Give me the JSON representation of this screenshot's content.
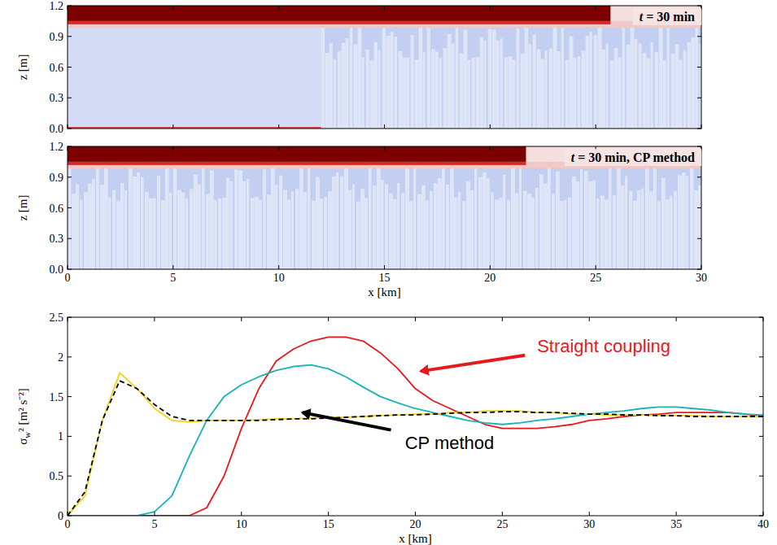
{
  "chart_data": [
    {
      "type": "field",
      "annotation": "t = 30 min",
      "xlim": [
        0,
        30
      ],
      "xticks": [
        0,
        5,
        10,
        15,
        20,
        25,
        30
      ],
      "ylim": [
        0,
        1.2
      ],
      "yticks": [
        {
          "value": 0,
          "label": "0.0"
        },
        0.3,
        0.6,
        0.9,
        1.2
      ],
      "ylabel": "z [m]",
      "tick_labels": "y",
      "inversion_end": 25.7,
      "turbulence_start": 12
    },
    {
      "type": "field",
      "annotation": "t = 30 min, CP method",
      "xlim": [
        0,
        30
      ],
      "xticks": [
        0,
        5,
        10,
        15,
        20,
        25,
        30
      ],
      "ylim": [
        0,
        1.2
      ],
      "yticks": [
        {
          "value": 0,
          "label": "0.0"
        },
        0.3,
        0.6,
        0.9,
        1.2
      ],
      "ylabel": "z [m]",
      "xlabel": "x [km]",
      "inversion_end": 21.7,
      "turbulence_start": 0
    },
    {
      "type": "line",
      "xlabel": "x [km]",
      "ylabel": "σw² [m² s⁻²]",
      "xlim": [
        0,
        40
      ],
      "xticks": [
        0,
        5,
        10,
        15,
        20,
        25,
        30,
        35,
        40
      ],
      "ylim": [
        0,
        2.5
      ],
      "yticks": [
        0,
        0.5,
        1,
        1.5,
        2,
        2.5
      ],
      "x": [
        0,
        1,
        2,
        3,
        4,
        5,
        6,
        7,
        8,
        9,
        10,
        11,
        12,
        13,
        14,
        15,
        16,
        17,
        18,
        19,
        20,
        21,
        22,
        23,
        24,
        25,
        26,
        27,
        28,
        29,
        30,
        31,
        32,
        33,
        34,
        35,
        36,
        37,
        38,
        39,
        40
      ],
      "series": [
        {
          "color": "#e8191c",
          "line_style": "solid",
          "values": [
            0,
            0,
            0,
            0,
            0,
            0,
            0,
            0,
            0.1,
            0.5,
            1.1,
            1.6,
            1.95,
            2.1,
            2.2,
            2.25,
            2.25,
            2.2,
            2.05,
            1.85,
            1.6,
            1.45,
            1.35,
            1.25,
            1.15,
            1.1,
            1.1,
            1.1,
            1.12,
            1.15,
            1.2,
            1.22,
            1.25,
            1.27,
            1.28,
            1.3,
            1.3,
            1.3,
            1.3,
            1.28,
            1.25
          ]
        },
        {
          "color": "#17b3b8",
          "line_style": "solid",
          "values": [
            0,
            0,
            0,
            0,
            0,
            0.05,
            0.25,
            0.75,
            1.2,
            1.5,
            1.65,
            1.75,
            1.83,
            1.88,
            1.9,
            1.85,
            1.75,
            1.62,
            1.5,
            1.42,
            1.35,
            1.3,
            1.25,
            1.2,
            1.17,
            1.15,
            1.17,
            1.2,
            1.22,
            1.25,
            1.28,
            1.3,
            1.32,
            1.35,
            1.37,
            1.37,
            1.35,
            1.33,
            1.3,
            1.28,
            1.27
          ]
        },
        {
          "color": "#f2d317",
          "line_style": "solid",
          "values": [
            0,
            0.25,
            1.2,
            1.8,
            1.6,
            1.35,
            1.2,
            1.18,
            1.2,
            1.2,
            1.2,
            1.21,
            1.22,
            1.22,
            1.23,
            1.24,
            1.24,
            1.25,
            1.26,
            1.27,
            1.28,
            1.28,
            1.3,
            1.3,
            1.32,
            1.32,
            1.32,
            1.3,
            1.3,
            1.28,
            1.28,
            1.27,
            1.27,
            1.27,
            1.26,
            1.26,
            1.26,
            1.25,
            1.25,
            1.25,
            1.25
          ]
        },
        {
          "color": "#000000",
          "line_style": "dashed",
          "values": [
            0,
            0.3,
            1.2,
            1.7,
            1.6,
            1.4,
            1.25,
            1.2,
            1.2,
            1.2,
            1.2,
            1.2,
            1.21,
            1.22,
            1.22,
            1.23,
            1.24,
            1.25,
            1.26,
            1.27,
            1.27,
            1.28,
            1.29,
            1.3,
            1.3,
            1.31,
            1.31,
            1.3,
            1.3,
            1.29,
            1.28,
            1.28,
            1.27,
            1.27,
            1.26,
            1.26,
            1.25,
            1.25,
            1.25,
            1.25,
            1.25
          ]
        }
      ],
      "annotations": [
        {
          "text": "Straight coupling",
          "color": "#e8191c"
        },
        {
          "text": "CP method",
          "color": "#000000"
        }
      ]
    }
  ]
}
